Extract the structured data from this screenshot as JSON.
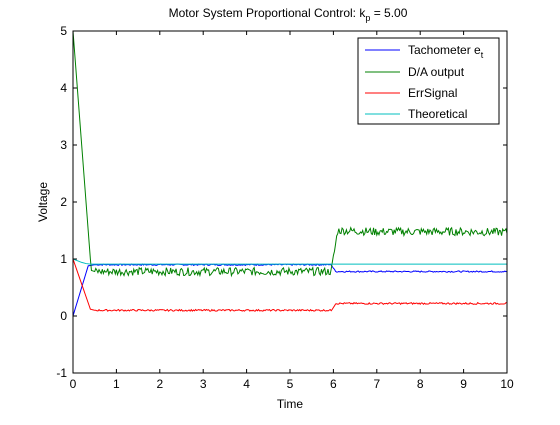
{
  "chart_data": {
    "type": "line",
    "title": {
      "main": "Motor System Proportional Control: k",
      "sub": "p",
      "rest": " = 5.00"
    },
    "xlabel": "Time",
    "ylabel": "Voltage",
    "xlim": [
      0,
      10
    ],
    "ylim": [
      -1,
      5
    ],
    "xticks": [
      "0",
      "1",
      "2",
      "3",
      "4",
      "5",
      "6",
      "7",
      "8",
      "9",
      "10"
    ],
    "yticks": [
      "-1",
      "0",
      "1",
      "2",
      "3",
      "4",
      "5"
    ],
    "grid": false,
    "legend_position": "top-right",
    "series": [
      {
        "name": "Tachometer e",
        "name_sub": "t",
        "color": "#0000ff",
        "style": "noisy",
        "points": [
          [
            0,
            0
          ],
          [
            0.35,
            0.88
          ],
          [
            0.5,
            0.9
          ],
          [
            1,
            0.9
          ],
          [
            2,
            0.9
          ],
          [
            3,
            0.9
          ],
          [
            4,
            0.9
          ],
          [
            5,
            0.9
          ],
          [
            5.95,
            0.9
          ],
          [
            6.05,
            0.78
          ],
          [
            7,
            0.78
          ],
          [
            8,
            0.78
          ],
          [
            9,
            0.78
          ],
          [
            10,
            0.78
          ]
        ],
        "noise": 0.012
      },
      {
        "name": "D/A output",
        "color": "#008000",
        "style": "noisy",
        "points": [
          [
            0,
            5
          ],
          [
            0.42,
            0.8
          ],
          [
            0.5,
            0.78
          ],
          [
            1,
            0.78
          ],
          [
            2,
            0.78
          ],
          [
            3,
            0.78
          ],
          [
            4,
            0.78
          ],
          [
            5,
            0.78
          ],
          [
            5.95,
            0.78
          ],
          [
            6.1,
            1.5
          ],
          [
            7,
            1.48
          ],
          [
            8,
            1.48
          ],
          [
            9,
            1.48
          ],
          [
            10,
            1.47
          ]
        ],
        "noise": 0.07
      },
      {
        "name": "ErrSignal",
        "color": "#ff0000",
        "style": "noisy",
        "points": [
          [
            0,
            1
          ],
          [
            0.4,
            0.12
          ],
          [
            0.5,
            0.1
          ],
          [
            1,
            0.1
          ],
          [
            2,
            0.1
          ],
          [
            3,
            0.1
          ],
          [
            4,
            0.1
          ],
          [
            5,
            0.1
          ],
          [
            5.95,
            0.1
          ],
          [
            6.05,
            0.22
          ],
          [
            7,
            0.22
          ],
          [
            8,
            0.22
          ],
          [
            9,
            0.22
          ],
          [
            10,
            0.22
          ]
        ],
        "noise": 0.015
      },
      {
        "name": "Theoretical",
        "color": "#00bfbf",
        "style": "smooth",
        "points": [
          [
            0,
            1
          ],
          [
            0.1,
            0.97
          ],
          [
            0.2,
            0.94
          ],
          [
            0.3,
            0.92
          ],
          [
            0.4,
            0.91
          ],
          [
            0.5,
            0.91
          ],
          [
            1,
            0.91
          ],
          [
            5,
            0.91
          ],
          [
            10,
            0.91
          ]
        ],
        "noise": 0
      }
    ]
  }
}
